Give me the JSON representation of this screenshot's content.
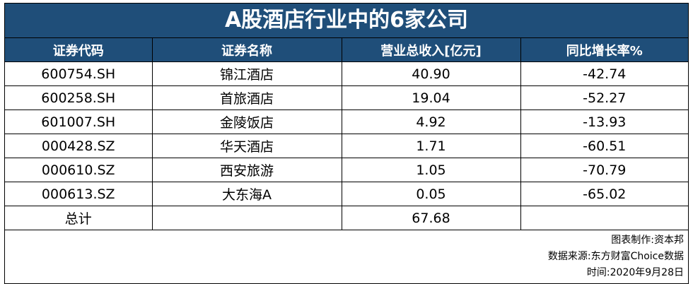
{
  "title": "A股酒店行业中的6家公司",
  "table": {
    "headers": [
      "证券代码",
      "证券名称",
      "营业总收入[亿元]",
      "同比增长率%"
    ],
    "rows": [
      [
        "600754.SH",
        "锦江酒店",
        "40.90",
        "-42.74"
      ],
      [
        "600258.SH",
        "首旅酒店",
        "19.04",
        "-52.27"
      ],
      [
        "601007.SH",
        "金陵饭店",
        "4.92",
        "-13.93"
      ],
      [
        "000428.SZ",
        "华天酒店",
        "1.71",
        "-60.51"
      ],
      [
        "000610.SZ",
        "西安旅游",
        "1.05",
        "-70.79"
      ],
      [
        "000613.SZ",
        "大东海A",
        "0.05",
        "-65.02"
      ]
    ],
    "total": {
      "label": "总计",
      "revenue": "67.68"
    }
  },
  "footer": [
    "图表制作:资本邦",
    "数据来源:东方财富Choice数据",
    "时间:2020年9月28日"
  ]
}
